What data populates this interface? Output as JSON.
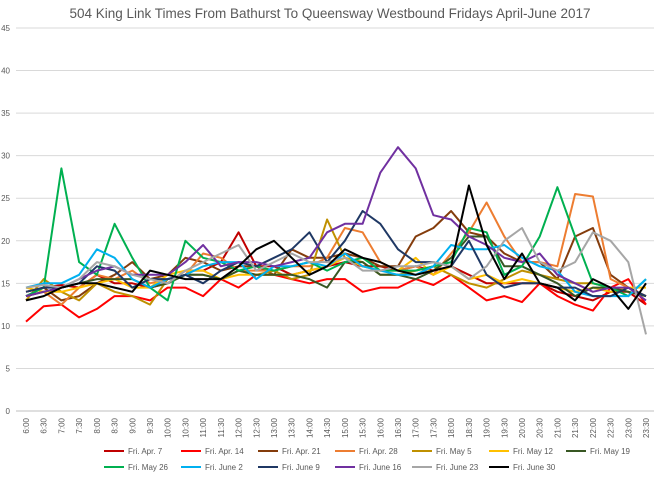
{
  "chart_data": {
    "type": "line",
    "title": "504 King Link Times From Bathurst To Queensway Westbound Fridays April-June 2017",
    "xlabel": "",
    "ylabel": "",
    "ylim": [
      0,
      45
    ],
    "yticks": [
      0,
      5,
      10,
      15,
      20,
      25,
      30,
      35,
      40,
      45
    ],
    "grid": true,
    "legend_position": "bottom",
    "categories": [
      "6:00",
      "6:30",
      "7:00",
      "7:30",
      "8:00",
      "8:30",
      "9:00",
      "9:30",
      "10:00",
      "10:30",
      "11:00",
      "11:30",
      "12:00",
      "12:30",
      "13:00",
      "13:30",
      "14:00",
      "14:30",
      "15:00",
      "15:30",
      "16:00",
      "16:30",
      "17:00",
      "17:30",
      "18:00",
      "18:30",
      "19:00",
      "19:30",
      "20:00",
      "20:30",
      "21:00",
      "21:30",
      "22:00",
      "22:30",
      "23:00",
      "23:30"
    ],
    "series": [
      {
        "name": "Fri. Apr. 7",
        "color": "#c00000",
        "values": [
          14.0,
          14.5,
          14.8,
          14.5,
          16.0,
          15.0,
          15.0,
          14.5,
          15.0,
          16.5,
          16.5,
          17.5,
          21.0,
          17.0,
          17.0,
          16.0,
          16.5,
          17.0,
          17.5,
          17.0,
          17.0,
          16.5,
          17.0,
          16.5,
          17.0,
          16.0,
          15.0,
          15.0,
          15.0,
          15.0,
          14.0,
          13.5,
          13.0,
          14.0,
          14.0,
          12.5
        ]
      },
      {
        "name": "Fri. Apr. 14",
        "color": "#ff0000",
        "values": [
          10.5,
          12.3,
          12.5,
          11.0,
          12.0,
          13.5,
          13.5,
          13.0,
          14.5,
          14.5,
          13.5,
          15.5,
          14.5,
          16.0,
          16.0,
          15.5,
          15.0,
          15.5,
          15.5,
          14.0,
          14.5,
          14.5,
          15.5,
          14.8,
          16.0,
          14.5,
          13.0,
          13.5,
          12.8,
          15.0,
          13.5,
          12.5,
          11.8,
          14.5,
          15.5,
          12.5
        ]
      },
      {
        "name": "Fri. Apr. 21",
        "color": "#843c0c",
        "values": [
          13.5,
          14.5,
          13.0,
          13.5,
          15.0,
          16.0,
          17.5,
          15.5,
          16.0,
          18.0,
          17.5,
          16.5,
          17.0,
          17.0,
          16.0,
          19.0,
          18.0,
          18.0,
          18.5,
          18.0,
          17.0,
          17.0,
          20.5,
          21.5,
          23.5,
          21.0,
          20.5,
          18.5,
          17.5,
          17.5,
          15.5,
          20.5,
          21.5,
          16.0,
          14.5,
          13.5
        ]
      },
      {
        "name": "Fri. Apr. 28",
        "color": "#ed7d31",
        "values": [
          13.5,
          14.0,
          12.5,
          14.5,
          16.0,
          15.5,
          16.5,
          15.0,
          15.5,
          16.0,
          18.5,
          18.0,
          16.5,
          16.5,
          16.5,
          17.0,
          17.0,
          18.0,
          21.5,
          21.0,
          17.5,
          16.5,
          17.0,
          16.0,
          18.5,
          21.0,
          24.5,
          20.5,
          17.5,
          17.5,
          17.0,
          25.5,
          25.2,
          15.5,
          14.5,
          13.5
        ]
      },
      {
        "name": "Fri. May 5",
        "color": "#bf9000",
        "values": [
          13.0,
          15.5,
          14.0,
          13.0,
          15.0,
          14.0,
          13.5,
          12.5,
          15.5,
          16.0,
          16.0,
          15.5,
          16.5,
          16.0,
          16.5,
          15.5,
          16.0,
          22.5,
          18.0,
          17.5,
          16.0,
          16.0,
          16.5,
          17.0,
          16.0,
          15.0,
          14.5,
          15.5,
          16.5,
          16.0,
          15.5,
          15.0,
          15.0,
          14.5,
          14.0,
          13.5
        ]
      },
      {
        "name": "Fri. May 12",
        "color": "#ffc000",
        "values": [
          14.5,
          14.0,
          14.0,
          14.5,
          15.0,
          15.5,
          14.5,
          14.5,
          16.0,
          16.5,
          16.5,
          15.5,
          16.0,
          16.0,
          16.0,
          16.0,
          16.5,
          17.0,
          18.0,
          17.0,
          16.5,
          16.5,
          18.0,
          16.0,
          17.0,
          15.5,
          16.0,
          15.0,
          15.5,
          15.0,
          14.5,
          14.0,
          14.5,
          14.0,
          14.5,
          14.5
        ]
      },
      {
        "name": "Fri. May 19",
        "color": "#385723",
        "values": [
          13.5,
          14.0,
          14.5,
          15.0,
          15.5,
          15.5,
          15.5,
          14.5,
          15.0,
          16.0,
          16.0,
          15.5,
          16.5,
          16.0,
          16.0,
          16.0,
          15.5,
          14.5,
          17.5,
          17.5,
          16.0,
          16.0,
          15.5,
          16.5,
          18.0,
          20.5,
          20.5,
          17.0,
          17.0,
          16.0,
          15.0,
          13.5,
          14.5,
          14.5,
          14.0,
          13.5
        ]
      },
      {
        "name": "Fri. May 26",
        "color": "#00b050",
        "values": [
          13.5,
          14.5,
          28.5,
          17.5,
          16.0,
          22.0,
          18.0,
          14.5,
          13.0,
          20.0,
          18.0,
          17.5,
          16.5,
          17.0,
          16.5,
          17.0,
          17.5,
          16.5,
          17.5,
          18.0,
          16.5,
          16.5,
          16.5,
          17.0,
          17.5,
          21.5,
          21.0,
          16.0,
          17.0,
          20.5,
          26.3,
          20.5,
          15.0,
          14.5,
          13.5,
          15.5
        ]
      },
      {
        "name": "Fri. June 2",
        "color": "#00b0f0",
        "values": [
          14.5,
          15.0,
          15.0,
          16.0,
          19.0,
          18.0,
          15.5,
          14.5,
          15.5,
          16.0,
          17.0,
          17.5,
          17.5,
          15.5,
          17.0,
          17.0,
          17.5,
          17.0,
          18.5,
          17.0,
          16.5,
          16.0,
          16.0,
          17.0,
          19.5,
          19.0,
          19.0,
          19.5,
          18.0,
          17.0,
          16.5,
          14.0,
          13.5,
          13.5,
          13.5,
          15.5
        ]
      },
      {
        "name": "Fri. June 9",
        "color": "#1f3864",
        "values": [
          14.0,
          14.5,
          14.5,
          15.0,
          17.0,
          16.5,
          14.5,
          15.5,
          15.5,
          16.0,
          15.0,
          16.5,
          17.5,
          17.0,
          18.0,
          19.0,
          21.0,
          17.5,
          20.0,
          23.5,
          22.0,
          19.0,
          17.5,
          17.5,
          17.0,
          20.0,
          16.0,
          14.5,
          15.0,
          15.0,
          14.5,
          14.5,
          13.5,
          13.5,
          14.5,
          13.5
        ]
      },
      {
        "name": "Fri. June 16",
        "color": "#7030a0",
        "values": [
          13.5,
          14.0,
          14.5,
          15.5,
          16.5,
          17.0,
          16.0,
          16.0,
          16.0,
          17.5,
          19.5,
          17.0,
          17.5,
          17.5,
          17.0,
          17.5,
          18.0,
          21.0,
          22.0,
          22.0,
          28.0,
          31.0,
          28.5,
          23.0,
          22.5,
          20.5,
          19.5,
          18.0,
          17.5,
          18.5,
          16.0,
          15.0,
          14.0,
          14.5,
          14.5,
          13.0
        ]
      },
      {
        "name": "Fri. June 23",
        "color": "#a6a6a6",
        "values": [
          14.5,
          14.8,
          14.5,
          15.5,
          17.5,
          17.0,
          16.0,
          15.5,
          15.0,
          16.5,
          17.5,
          18.5,
          19.5,
          16.5,
          17.5,
          18.5,
          17.5,
          17.5,
          18.0,
          16.5,
          16.5,
          17.0,
          17.0,
          17.5,
          17.0,
          15.5,
          17.0,
          20.0,
          21.5,
          17.5,
          16.5,
          17.5,
          21.0,
          20.0,
          17.5,
          9.0
        ]
      },
      {
        "name": "Fri. June 30",
        "color": "#000000",
        "values": [
          13.0,
          13.5,
          14.5,
          15.0,
          15.0,
          14.5,
          14.0,
          16.5,
          16.0,
          15.5,
          15.5,
          15.5,
          17.0,
          19.0,
          20.0,
          18.0,
          16.0,
          17.0,
          19.0,
          18.0,
          17.5,
          16.5,
          16.0,
          16.5,
          17.0,
          26.5,
          19.5,
          15.5,
          18.5,
          15.0,
          14.5,
          13.0,
          15.5,
          14.5,
          12.0,
          15.0
        ]
      }
    ]
  }
}
